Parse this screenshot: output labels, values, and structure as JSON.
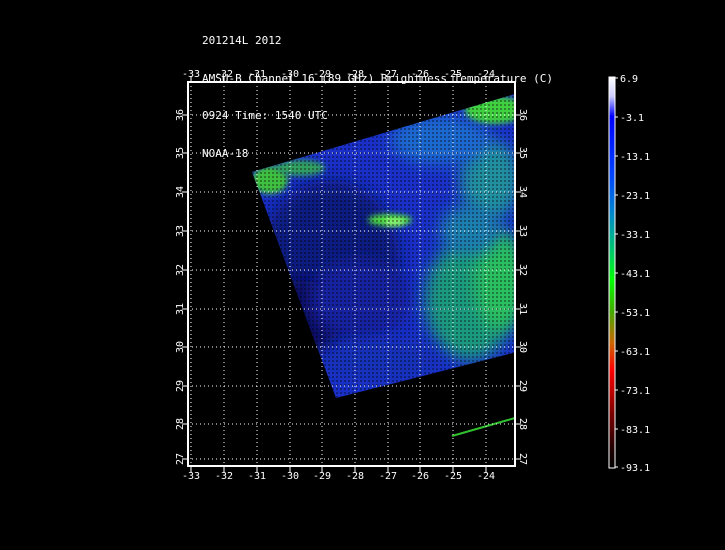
{
  "header": {
    "line1": "201214L 2012",
    "line2": "AMSU-B Channel 16 (89 GHz) Brightness Temperature (C)",
    "line3": "0924 Time: 1540 UTC",
    "line4": "NOAA-18"
  },
  "map": {
    "lon_ticks": [
      "-33",
      "-32",
      "-31",
      "-30",
      "-29",
      "-28",
      "-27",
      "-26",
      "-25",
      "-24"
    ],
    "lat_ticks": [
      "36",
      "35",
      "34",
      "33",
      "32",
      "31",
      "30",
      "29",
      "28",
      "27"
    ],
    "lon_range": [
      -33,
      -22.9
    ],
    "lat_range": [
      26.8,
      36.8
    ],
    "grid": true
  },
  "colorbar": {
    "labels": [
      "6.9",
      "-3.1",
      "-13.1",
      "-23.1",
      "-33.1",
      "-43.1",
      "-53.1",
      "-63.1",
      "-73.1",
      "-83.1",
      "-93.1"
    ],
    "range": [
      -93.1,
      6.9
    ],
    "colors": [
      "#ffffff",
      "#0000ff",
      "#0066ff",
      "#00ff66",
      "#00cc00",
      "#cc6600",
      "#ff0000",
      "#660000",
      "#000000"
    ]
  }
}
